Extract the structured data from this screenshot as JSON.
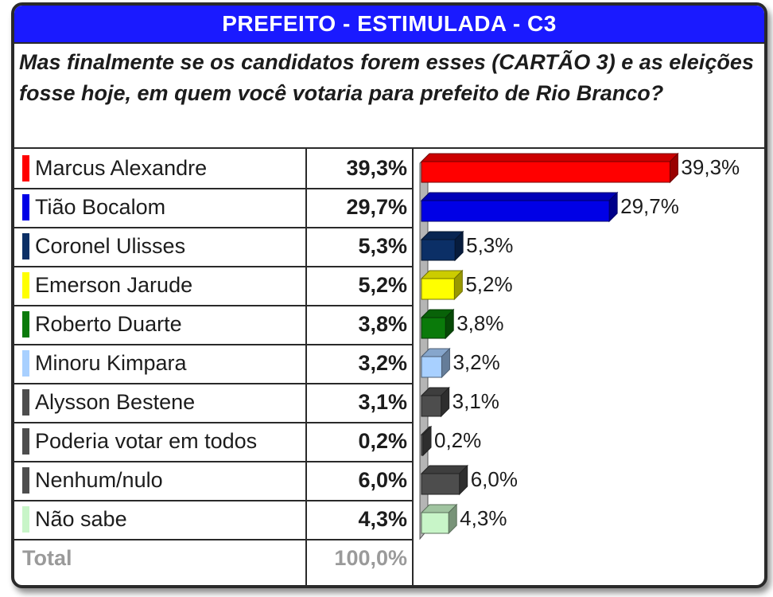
{
  "title": "PREFEITO - ESTIMULADA - C3",
  "question": "Mas finalmente se os candidatos forem esses (CARTÃO 3) e as eleições fosse hoje, em quem você votaria para prefeito de Rio Branco?",
  "total": {
    "label": "Total",
    "value": "100,0%"
  },
  "chart_data": {
    "type": "bar",
    "title": "PREFEITO - ESTIMULADA - C3",
    "categories": [
      "Marcus Alexandre",
      "Tião Bocalom",
      "Coronel Ulisses",
      "Emerson Jarude",
      "Roberto Duarte",
      "Minoru Kimpara",
      "Alysson Bestene",
      "Poderia votar em todos",
      "Nenhum/nulo",
      "Não sabe"
    ],
    "values": [
      39.3,
      29.7,
      5.3,
      5.2,
      3.8,
      3.2,
      3.1,
      0.2,
      6.0,
      4.3
    ],
    "labels": [
      "39,3%",
      "29,7%",
      "5,3%",
      "5,2%",
      "3,8%",
      "3,2%",
      "3,1%",
      "0,2%",
      "6,0%",
      "4,3%"
    ],
    "colors": [
      "#ff0000",
      "#0000e6",
      "#0b2f66",
      "#ffff00",
      "#0a7a0a",
      "#a8d0ff",
      "#4d4d4d",
      "#4d4d4d",
      "#4d4d4d",
      "#c8f5c8"
    ],
    "orientation": "horizontal",
    "style": "3d",
    "xlim": [
      0,
      40
    ],
    "grid": false
  }
}
